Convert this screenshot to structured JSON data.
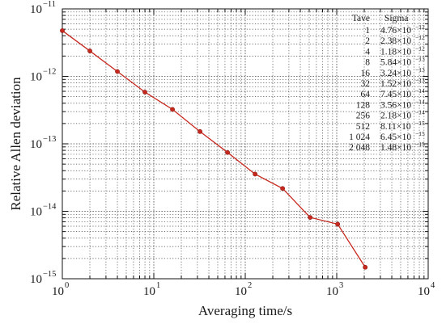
{
  "chart_data": {
    "type": "line",
    "xlabel": "Averaging time/s",
    "ylabel": "Relative Allen deviation",
    "x_scale": "log",
    "y_scale": "log",
    "xlim": [
      1,
      10000
    ],
    "ylim": [
      1e-15,
      1e-11
    ],
    "grid": true,
    "color": "#c8281e",
    "x_ticks": [
      {
        "base": "10",
        "exp": "0"
      },
      {
        "base": "10",
        "exp": "1"
      },
      {
        "base": "10",
        "exp": "2"
      },
      {
        "base": "10",
        "exp": "3"
      },
      {
        "base": "10",
        "exp": "4"
      }
    ],
    "y_ticks": [
      {
        "base": "10",
        "exp": "−15"
      },
      {
        "base": "10",
        "exp": "−14"
      },
      {
        "base": "10",
        "exp": "−13"
      },
      {
        "base": "10",
        "exp": "−12"
      },
      {
        "base": "10",
        "exp": "−11"
      }
    ],
    "series": [
      {
        "x": [
          1,
          2,
          4,
          8,
          16,
          32,
          64,
          128,
          256,
          512,
          1024,
          2048
        ],
        "y": [
          4.76e-12,
          2.38e-12,
          1.18e-12,
          5.84e-13,
          3.24e-13,
          1.52e-13,
          7.45e-14,
          3.56e-14,
          2.18e-14,
          8.11e-15,
          6.45e-15,
          1.48e-15
        ]
      }
    ],
    "table": {
      "headers": [
        "Tave",
        "Sigma"
      ],
      "rows": [
        {
          "tave": "1",
          "mant": "4.76×10",
          "exp": "−12"
        },
        {
          "tave": "2",
          "mant": "2.38×10",
          "exp": "−12"
        },
        {
          "tave": "4",
          "mant": "1.18×10",
          "exp": "−12"
        },
        {
          "tave": "8",
          "mant": "5.84×10",
          "exp": "−13"
        },
        {
          "tave": "16",
          "mant": "3.24×10",
          "exp": "−13"
        },
        {
          "tave": "32",
          "mant": "1.52×10",
          "exp": "−13"
        },
        {
          "tave": "64",
          "mant": "7.45×10",
          "exp": "−14"
        },
        {
          "tave": "128",
          "mant": "3.56×10",
          "exp": "−14"
        },
        {
          "tave": "256",
          "mant": "2.18×10",
          "exp": "−14"
        },
        {
          "tave": "512",
          "mant": "8.11×10",
          "exp": "−15"
        },
        {
          "tave": "1 024",
          "mant": "6.45×10",
          "exp": "−15"
        },
        {
          "tave": "2 048",
          "mant": "1.48×10",
          "exp": "−15"
        }
      ]
    }
  }
}
